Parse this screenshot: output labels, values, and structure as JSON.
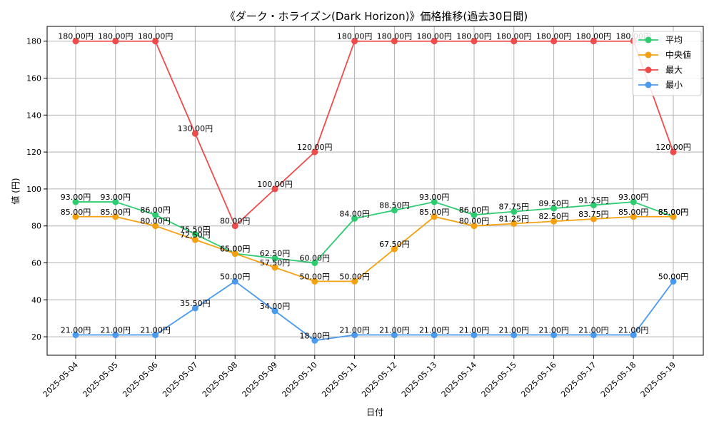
{
  "chart_data": {
    "type": "line",
    "title": "《ダーク・ホライズン(Dark Horizon)》価格推移(過去30日間)",
    "xlabel": "日付",
    "ylabel": "値 (円)",
    "ylim": [
      10,
      188
    ],
    "yticks": [
      20,
      40,
      60,
      80,
      100,
      120,
      140,
      160,
      180
    ],
    "grid": true,
    "legend_position": "top-right",
    "categories": [
      "2025-05-04",
      "2025-05-05",
      "2025-05-06",
      "2025-05-07",
      "2025-05-08",
      "2025-05-09",
      "2025-05-10",
      "2025-05-11",
      "2025-05-12",
      "2025-05-13",
      "2025-05-14",
      "2025-05-15",
      "2025-05-16",
      "2025-05-17",
      "2025-05-18",
      "2025-05-19"
    ],
    "value_suffix": "円",
    "series": [
      {
        "name": "平均",
        "color": "#2ecc71",
        "values": [
          93,
          93,
          86,
          75.5,
          65,
          62.5,
          60,
          84,
          88.5,
          93,
          86,
          87.75,
          89.5,
          91.25,
          93,
          85
        ]
      },
      {
        "name": "中央値",
        "color": "#f5a00f",
        "values": [
          85,
          85,
          80,
          72.5,
          65,
          57.5,
          50,
          50,
          67.5,
          85,
          80,
          81.25,
          82.5,
          83.75,
          85,
          85
        ]
      },
      {
        "name": "最大",
        "color": "#f04b4b",
        "values": [
          180,
          180,
          180,
          130,
          80,
          100,
          120,
          180,
          180,
          180,
          180,
          180,
          180,
          180,
          180,
          120
        ]
      },
      {
        "name": "最小",
        "color": "#4a9af0",
        "values": [
          21,
          21,
          21,
          35.5,
          50,
          34,
          18,
          21,
          21,
          21,
          21,
          21,
          21,
          21,
          21,
          50
        ]
      }
    ]
  }
}
